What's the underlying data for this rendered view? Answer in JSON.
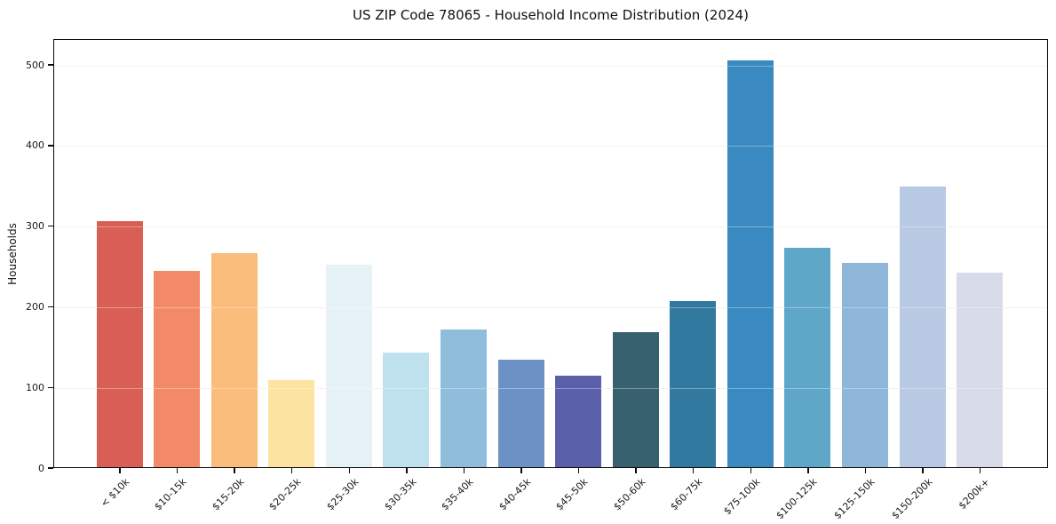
{
  "chart": {
    "title": "US ZIP Code 78065 - Household Income Distribution (2024)",
    "ylabel": "Households"
  },
  "chart_data": {
    "type": "bar",
    "title": "US ZIP Code 78065 - Household Income Distribution (2024)",
    "xlabel": "",
    "ylabel": "Households",
    "categories": [
      "< $10k",
      "$10-15k",
      "$15-20k",
      "$20-25k",
      "$25-30k",
      "$30-35k",
      "$35-40k",
      "$40-45k",
      "$45-50k",
      "$50-60k",
      "$60-75k",
      "$75-100k",
      "$100-125k",
      "$125-150k",
      "$150-200k",
      "$200k+"
    ],
    "values": [
      305,
      243,
      266,
      108,
      251,
      142,
      171,
      133,
      113,
      167,
      206,
      505,
      272,
      253,
      348,
      241
    ],
    "bar_colors": [
      "#d95f54",
      "#f28a68",
      "#fbbd7b",
      "#fde3a1",
      "#e7f2f7",
      "#bfe1ee",
      "#90bddc",
      "#6c92c5",
      "#5a5fa9",
      "#37616f",
      "#32799f",
      "#3a8ac1",
      "#5ea7c9",
      "#8eb6d9",
      "#b7c9e3",
      "#d8dbe8"
    ],
    "yticks": [
      0,
      100,
      200,
      300,
      400,
      500
    ],
    "ylim": [
      0,
      532
    ],
    "grid": "horizontal",
    "gridline_color": "#ebebee",
    "spine_color": "#0a0a0a",
    "legend": "none",
    "x_tick_rotation_deg": 45
  }
}
